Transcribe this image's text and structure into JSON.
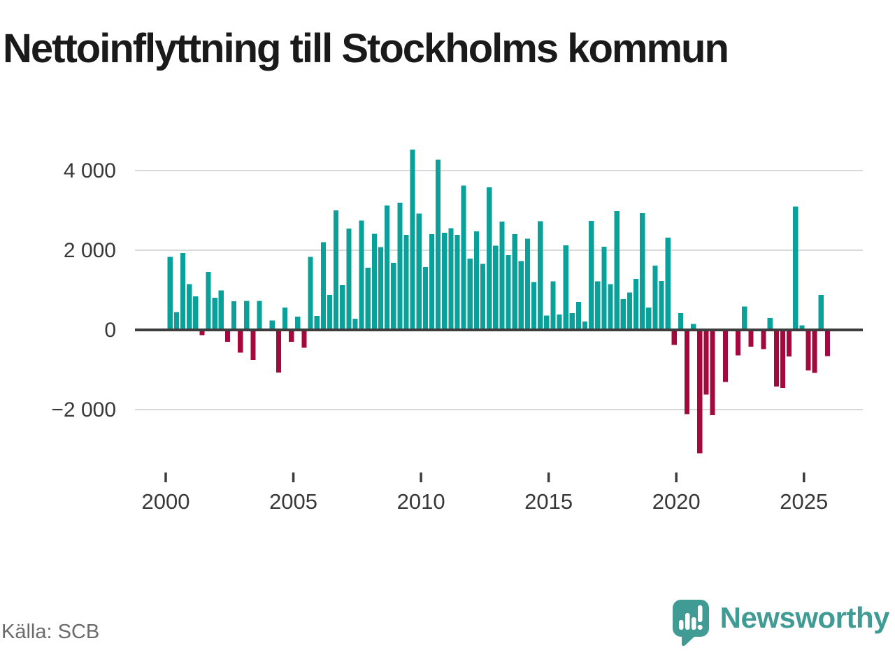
{
  "title": "Nettoinflyttning till Stockholms kommun",
  "source": {
    "text": "Källa: SCB"
  },
  "logo": {
    "text": "Newsworthy",
    "icon": "newsworthy-speech-bubble-bar-chart-icon"
  },
  "colors": {
    "positive_bar": "#0aa19b",
    "negative_bar": "#a4093d",
    "gridline": "#d8d8d8",
    "zero_line": "#3d3d3d",
    "axis_text": "#383838",
    "title_text": "#1a1a1a",
    "source_text": "#6b6b6b",
    "logo_teal": "#3f9b94"
  },
  "chart_data": {
    "type": "bar",
    "title": "Nettoinflyttning till Stockholms kommun",
    "frequency": "quarterly",
    "start_period": "2000-Q1",
    "end_period": "2025-Q4",
    "values": [
      1830,
      450,
      1930,
      1150,
      840,
      -130,
      1460,
      810,
      990,
      -300,
      720,
      -570,
      730,
      -750,
      730,
      0,
      240,
      -1070,
      560,
      -300,
      330,
      -450,
      1830,
      350,
      2200,
      880,
      3000,
      1120,
      2540,
      280,
      2750,
      1560,
      2410,
      2080,
      3120,
      1680,
      3190,
      2390,
      4530,
      2920,
      1580,
      2400,
      4270,
      2440,
      2550,
      2390,
      3620,
      1790,
      2470,
      1660,
      3580,
      2110,
      2720,
      1880,
      2400,
      1730,
      2290,
      1200,
      2730,
      360,
      1220,
      390,
      2120,
      420,
      700,
      210,
      2740,
      1220,
      2090,
      1150,
      2980,
      770,
      940,
      1280,
      2930,
      560,
      1610,
      1230,
      2320,
      -380,
      420,
      -2110,
      150,
      -3100,
      -1620,
      -2140,
      0,
      -1310,
      0,
      -640,
      590,
      -420,
      0,
      -480,
      300,
      -1420,
      -1460,
      -670,
      3100,
      110,
      -1020,
      -1080,
      880,
      -660
    ],
    "x_ticks": [
      {
        "label": "2000",
        "year": 2000
      },
      {
        "label": "2005",
        "year": 2005
      },
      {
        "label": "2010",
        "year": 2010
      },
      {
        "label": "2015",
        "year": 2015
      },
      {
        "label": "2020",
        "year": 2020
      },
      {
        "label": "2025",
        "year": 2025
      }
    ],
    "y_ticks": [
      {
        "label": "4 000",
        "value": 4000
      },
      {
        "label": "2 000",
        "value": 2000
      },
      {
        "label": "0",
        "value": 0
      },
      {
        "label": "−2 000",
        "value": -2000
      }
    ],
    "ylim": [
      -3300,
      4700
    ],
    "grid": true,
    "legend": false
  }
}
